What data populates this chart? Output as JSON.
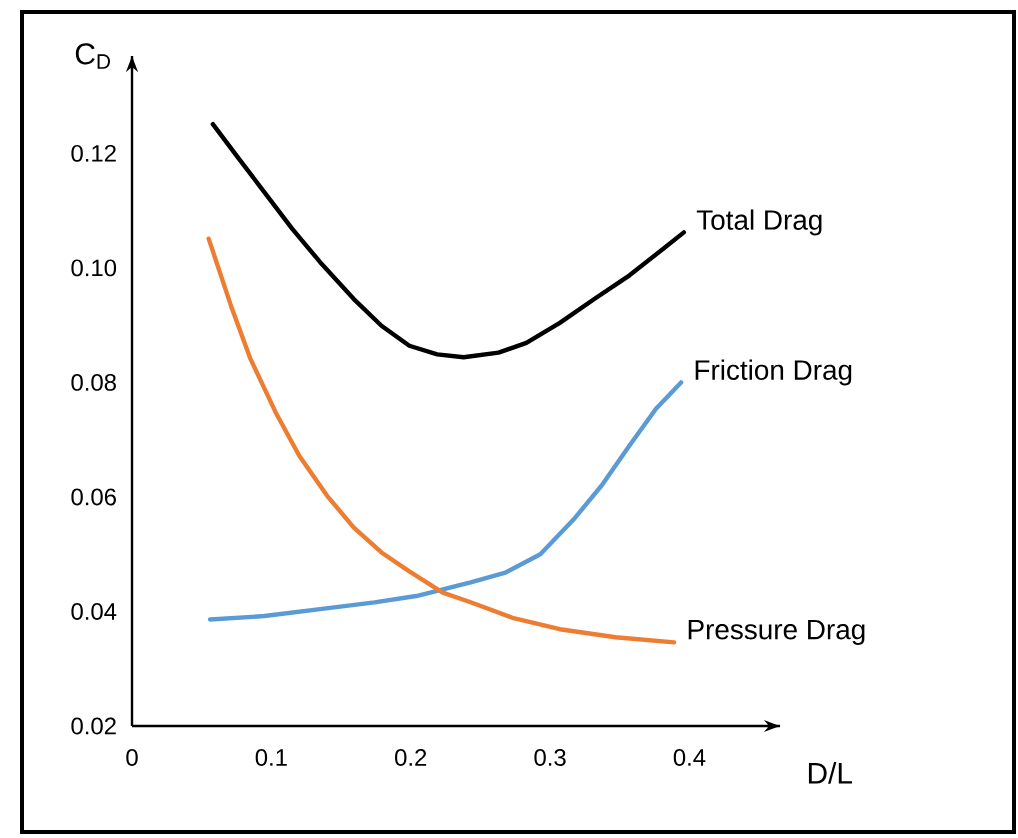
{
  "chart_data": {
    "type": "line",
    "xlabel": "D/L",
    "ylabel": "C$_{D}$",
    "xlim": [
      0,
      0.465
    ],
    "ylim": [
      0.02,
      0.137
    ],
    "xticks": [
      {
        "value": 0,
        "label": "0"
      },
      0.1,
      0.2,
      0.3,
      0.4
    ],
    "yticks": [
      0.02,
      0.04,
      0.06,
      0.08,
      {
        "value": 0.1,
        "label": "0.10"
      },
      0.12
    ],
    "grid": false,
    "legend": false,
    "marker": "none",
    "line_style": "solid",
    "series": [
      {
        "name": "Total Drag",
        "color": "#000000",
        "x": [
          0.058,
          0.075,
          0.095,
          0.115,
          0.135,
          0.159,
          0.179,
          0.199,
          0.219,
          0.238,
          0.263,
          0.283,
          0.307,
          0.332,
          0.357,
          0.381,
          0.396
        ],
        "values": [
          0.1251,
          0.1196,
          0.1132,
          0.1068,
          0.101,
          0.0946,
          0.0899,
          0.0864,
          0.0849,
          0.0844,
          0.0852,
          0.0869,
          0.0904,
          0.0946,
          0.0987,
          0.1033,
          0.1062
        ]
      },
      {
        "name": "Friction Drag",
        "color": "#5b9bd5",
        "x": [
          0.056,
          0.095,
          0.135,
          0.174,
          0.204,
          0.243,
          0.268,
          0.293,
          0.317,
          0.337,
          0.357,
          0.376,
          0.394
        ],
        "values": [
          0.0386,
          0.0392,
          0.0404,
          0.0416,
          0.0427,
          0.0451,
          0.0468,
          0.05,
          0.0561,
          0.062,
          0.069,
          0.0754,
          0.08
        ]
      },
      {
        "name": "Pressure Drag",
        "color": "#ed7d31",
        "x": [
          0.055,
          0.071,
          0.085,
          0.103,
          0.12,
          0.14,
          0.159,
          0.179,
          0.199,
          0.223,
          0.243,
          0.273,
          0.307,
          0.347,
          0.389
        ],
        "values": [
          0.1051,
          0.0934,
          0.0841,
          0.0748,
          0.0672,
          0.0602,
          0.0547,
          0.0503,
          0.047,
          0.0433,
          0.0416,
          0.0389,
          0.0369,
          0.0355,
          0.0346
        ]
      }
    ]
  }
}
